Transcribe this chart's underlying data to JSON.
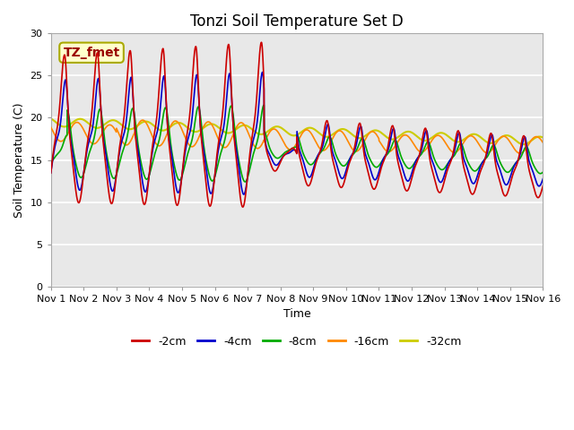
{
  "title": "Tonzi Soil Temperature Set D",
  "xlabel": "Time",
  "ylabel": "Soil Temperature (C)",
  "xlim": [
    0,
    15
  ],
  "ylim": [
    0,
    30
  ],
  "yticks": [
    0,
    5,
    10,
    15,
    20,
    25,
    30
  ],
  "xtick_labels": [
    "Nov 1",
    "Nov 2",
    "Nov 3",
    "Nov 4",
    "Nov 5",
    "Nov 6",
    "Nov 7",
    "Nov 8",
    "Nov 9",
    "Nov 10",
    "Nov 11",
    "Nov 12",
    "Nov 13",
    "Nov 14",
    "Nov 15",
    "Nov 16"
  ],
  "xtick_positions": [
    0,
    1,
    2,
    3,
    4,
    5,
    6,
    7,
    8,
    9,
    10,
    11,
    12,
    13,
    14,
    15
  ],
  "colors": {
    "-2cm": "#cc0000",
    "-4cm": "#0000cc",
    "-8cm": "#00aa00",
    "-16cm": "#ff8800",
    "-32cm": "#cccc00"
  },
  "annotation_text": "TZ_fmet",
  "annotation_bbox_facecolor": "#ffffcc",
  "annotation_bbox_edgecolor": "#aaaa00",
  "plot_bg_color": "#e8e8e8",
  "fig_bg_color": "#ffffff",
  "grid_color": "white",
  "title_fontsize": 12,
  "axis_label_fontsize": 9,
  "tick_label_fontsize": 8,
  "legend_fontsize": 9,
  "linewidth": 1.2
}
